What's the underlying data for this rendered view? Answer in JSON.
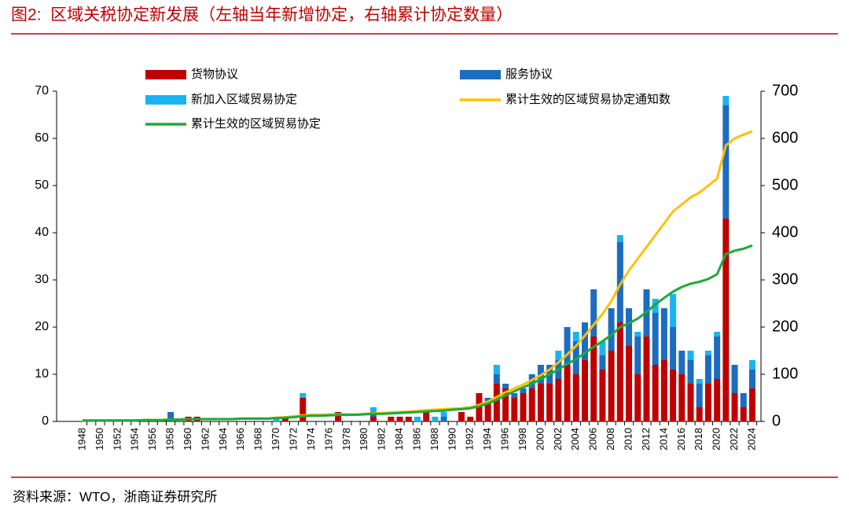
{
  "chart_data": {
    "type": "bar",
    "title": "图2:  区域关税协定新发展（左轴当年新增协定，右轴累计协定数量）",
    "source": "资料来源：WTO，浙商证券研究所",
    "categories": [
      "1948",
      null,
      "1950",
      null,
      "1952",
      null,
      "1954",
      null,
      "1956",
      null,
      "1958",
      null,
      "1960",
      null,
      "1962",
      null,
      "1964",
      null,
      "1966",
      null,
      "1968",
      null,
      "1970",
      null,
      "1972",
      null,
      "1974",
      null,
      "1976",
      null,
      "1978",
      null,
      "1980",
      null,
      "1982",
      null,
      "1984",
      null,
      "1986",
      null,
      "1988",
      null,
      "1990",
      null,
      "1992",
      null,
      "1994",
      null,
      "1996",
      null,
      "1998",
      null,
      "2000",
      null,
      "2002",
      null,
      "2004",
      null,
      "2006",
      null,
      "2008",
      null,
      "2010",
      null,
      "2012",
      null,
      "2014",
      null,
      "2016",
      null,
      "2018",
      null,
      "2020",
      null,
      "2022",
      null,
      "2024"
    ],
    "series": [
      {
        "name": "货物协议",
        "type": "bar",
        "color": "#c00000",
        "values": [
          0,
          0,
          0,
          0,
          0,
          0,
          0,
          0,
          0,
          0,
          0,
          0,
          1,
          1,
          0,
          0,
          0,
          0,
          0,
          0,
          0,
          0,
          0,
          1,
          0,
          5,
          0,
          0,
          0,
          2,
          0,
          0,
          0,
          1,
          0,
          1,
          1,
          1,
          0,
          2,
          0,
          0,
          0,
          2,
          1,
          6,
          4,
          8,
          7,
          5,
          6,
          7,
          8,
          8,
          9,
          12,
          10,
          13,
          18,
          11,
          15,
          21,
          16,
          10,
          18,
          12,
          13,
          11,
          10,
          8,
          3,
          8,
          9,
          43,
          6,
          3,
          7
        ]
      },
      {
        "name": "服务协议",
        "type": "bar",
        "color": "#1c6cc0",
        "values": [
          0,
          0,
          0,
          0,
          0,
          0,
          0,
          0,
          0,
          0,
          2,
          0,
          0,
          0,
          0,
          0,
          0,
          0,
          0,
          0,
          0,
          0,
          0,
          0,
          0,
          0,
          0,
          0,
          0,
          0,
          0,
          0,
          0,
          1,
          0,
          0,
          0,
          0,
          0,
          0,
          0,
          1,
          0,
          0,
          0,
          0,
          1,
          2,
          1,
          1,
          1,
          3,
          4,
          4,
          4,
          8,
          7,
          8,
          10,
          3,
          9,
          17,
          8,
          8,
          10,
          11,
          11,
          9,
          5,
          5,
          5,
          6,
          9,
          24,
          6,
          3,
          4
        ]
      },
      {
        "name": "新加入区域贸易协定",
        "type": "bar",
        "color": "#19b3f0",
        "values": [
          0,
          0,
          0,
          0,
          0,
          0,
          0,
          0,
          0,
          0,
          0,
          0,
          0,
          0,
          0,
          0,
          0,
          0,
          0,
          0,
          0,
          0,
          1,
          0,
          0,
          1,
          0,
          0,
          0,
          0,
          0,
          0,
          0,
          1,
          0,
          0,
          0,
          0,
          1,
          0,
          1,
          1,
          0,
          0,
          0,
          0,
          0,
          2,
          0,
          0,
          0,
          0,
          0,
          0,
          2,
          0,
          2,
          0,
          0,
          3,
          0,
          1.5,
          0,
          1,
          0,
          3,
          0,
          7,
          0,
          2,
          1,
          1,
          1,
          2,
          0,
          0,
          2
        ]
      },
      {
        "name": "累计生效的区域贸易协定通知数",
        "type": "line",
        "axis": "y2",
        "color": "#ffc000",
        "values": [
          2,
          2,
          2,
          2,
          2,
          2,
          2,
          3,
          3,
          3,
          4,
          4,
          5,
          5,
          5,
          5,
          5,
          5,
          6,
          6,
          6,
          6,
          8,
          9,
          11,
          13,
          14,
          14,
          15,
          15,
          15,
          15,
          16,
          17,
          18,
          19,
          20,
          21,
          22,
          24,
          25,
          26,
          27,
          28,
          30,
          35,
          42,
          52,
          62,
          70,
          78,
          88,
          98,
          110,
          125,
          142,
          160,
          182,
          205,
          228,
          255,
          290,
          320,
          345,
          370,
          395,
          420,
          445,
          460,
          475,
          485,
          500,
          515,
          585,
          600,
          608,
          615
        ]
      },
      {
        "name": "累计生效的区域贸易协定",
        "type": "line",
        "axis": "y2",
        "color": "#1aaa3a",
        "values": [
          2,
          2,
          2,
          2,
          2,
          2,
          2,
          3,
          3,
          3,
          4,
          4,
          5,
          5,
          5,
          5,
          5,
          5,
          6,
          6,
          6,
          6,
          7,
          8,
          9,
          11,
          12,
          12,
          13,
          14,
          14,
          14,
          15,
          16,
          16,
          17,
          18,
          19,
          20,
          21,
          22,
          23,
          25,
          26,
          28,
          32,
          38,
          46,
          55,
          64,
          72,
          80,
          90,
          100,
          110,
          122,
          132,
          145,
          158,
          170,
          183,
          200,
          208,
          218,
          232,
          248,
          262,
          275,
          285,
          292,
          296,
          302,
          312,
          355,
          362,
          366,
          373
        ]
      }
    ],
    "ylim": [
      0,
      70
    ],
    "yticks": [
      0,
      10,
      20,
      30,
      40,
      50,
      60,
      70
    ],
    "y2lim": [
      0,
      700
    ],
    "y2ticks": [
      0,
      100,
      200,
      300,
      400,
      500,
      600,
      700
    ],
    "grid": false
  }
}
